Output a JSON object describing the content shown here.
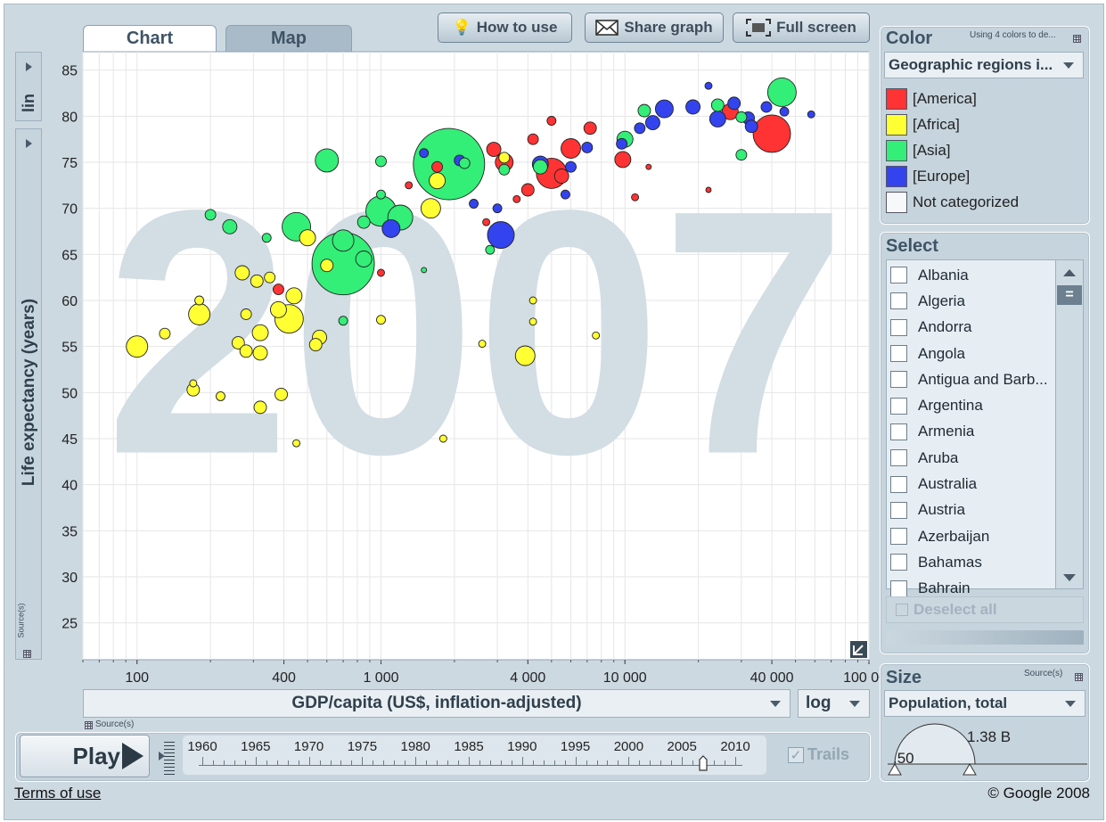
{
  "toolbar": {
    "how_to_use": "How to use",
    "share_graph": "Share graph",
    "full_screen": "Full screen"
  },
  "tabs": {
    "chart": "Chart",
    "map": "Map"
  },
  "y_axis": {
    "scale": "lin",
    "label": "Life expectancy (years)",
    "source": "Source(s)"
  },
  "x_axis": {
    "label": "GDP/capita (US$, inflation-adjusted)",
    "scale": "log",
    "source": "Source(s)"
  },
  "chart_data": {
    "type": "scatter",
    "year_watermark": "2007",
    "xlabel": "GDP/capita (US$, inflation-adjusted)",
    "ylabel": "Life expectancy (years)",
    "x_scale": "log",
    "xlim": [
      60,
      100000
    ],
    "ylim": [
      21,
      87
    ],
    "x_ticks": [
      {
        "v": 100,
        "t": "100"
      },
      {
        "v": 400,
        "t": "400"
      },
      {
        "v": 1000,
        "t": "1 000"
      },
      {
        "v": 4000,
        "t": "4 000"
      },
      {
        "v": 10000,
        "t": "10 000"
      },
      {
        "v": 40000,
        "t": "40 000"
      },
      {
        "v": 100000,
        "t": "100 000"
      }
    ],
    "y_ticks": [
      25,
      30,
      35,
      40,
      45,
      50,
      55,
      60,
      65,
      70,
      75,
      80,
      85
    ],
    "colors": {
      "America": "#ff3333",
      "Africa": "#ffff33",
      "Asia": "#33ee77",
      "Europe": "#3344ee"
    },
    "points": [
      {
        "x": 1900,
        "y": 74.8,
        "r": 40,
        "g": "Asia"
      },
      {
        "x": 700,
        "y": 64.0,
        "r": 35,
        "g": "Asia"
      },
      {
        "x": 40000,
        "y": 78.1,
        "r": 21,
        "g": "America"
      },
      {
        "x": 3100,
        "y": 67.1,
        "r": 15,
        "g": "Europe"
      },
      {
        "x": 5000,
        "y": 73.8,
        "r": 17,
        "g": "America"
      },
      {
        "x": 600,
        "y": 75.2,
        "r": 13,
        "g": "Asia"
      },
      {
        "x": 1000,
        "y": 69.7,
        "r": 17,
        "g": "Asia"
      },
      {
        "x": 450,
        "y": 68.0,
        "r": 16,
        "g": "Asia"
      },
      {
        "x": 1200,
        "y": 69.0,
        "r": 14,
        "g": "Asia"
      },
      {
        "x": 700,
        "y": 66.5,
        "r": 12,
        "g": "Asia"
      },
      {
        "x": 420,
        "y": 58.0,
        "r": 16,
        "g": "Africa"
      },
      {
        "x": 180,
        "y": 58.5,
        "r": 12,
        "g": "Africa"
      },
      {
        "x": 100,
        "y": 55.0,
        "r": 12,
        "g": "Africa"
      },
      {
        "x": 3900,
        "y": 54.0,
        "r": 11,
        "g": "Africa"
      },
      {
        "x": 1600,
        "y": 70.0,
        "r": 11,
        "g": "Africa"
      },
      {
        "x": 500,
        "y": 66.8,
        "r": 9,
        "g": "Africa"
      },
      {
        "x": 380,
        "y": 59.0,
        "r": 9,
        "g": "Africa"
      },
      {
        "x": 320,
        "y": 56.5,
        "r": 9,
        "g": "Africa"
      },
      {
        "x": 440,
        "y": 60.5,
        "r": 9,
        "g": "Africa"
      },
      {
        "x": 560,
        "y": 56.0,
        "r": 8,
        "g": "Africa"
      },
      {
        "x": 270,
        "y": 63.0,
        "r": 8,
        "g": "Africa"
      },
      {
        "x": 320,
        "y": 54.3,
        "r": 8,
        "g": "Africa"
      },
      {
        "x": 390,
        "y": 49.8,
        "r": 7,
        "g": "Africa"
      },
      {
        "x": 320,
        "y": 48.4,
        "r": 7,
        "g": "Africa"
      },
      {
        "x": 260,
        "y": 55.4,
        "r": 7,
        "g": "Africa"
      },
      {
        "x": 280,
        "y": 54.5,
        "r": 7,
        "g": "Africa"
      },
      {
        "x": 170,
        "y": 50.3,
        "r": 7,
        "g": "Africa"
      },
      {
        "x": 540,
        "y": 55.2,
        "r": 7,
        "g": "Africa"
      },
      {
        "x": 600,
        "y": 63.8,
        "r": 7,
        "g": "Africa"
      },
      {
        "x": 280,
        "y": 58.5,
        "r": 6,
        "g": "Africa"
      },
      {
        "x": 310,
        "y": 62.1,
        "r": 7,
        "g": "Africa"
      },
      {
        "x": 350,
        "y": 62.5,
        "r": 6,
        "g": "Africa"
      },
      {
        "x": 220,
        "y": 49.6,
        "r": 5,
        "g": "Africa"
      },
      {
        "x": 170,
        "y": 51.0,
        "r": 4,
        "g": "Africa"
      },
      {
        "x": 130,
        "y": 56.4,
        "r": 6,
        "g": "Africa"
      },
      {
        "x": 180,
        "y": 60.0,
        "r": 5,
        "g": "Africa"
      },
      {
        "x": 450,
        "y": 44.5,
        "r": 4,
        "g": "Africa"
      },
      {
        "x": 1800,
        "y": 45.0,
        "r": 4,
        "g": "Africa"
      },
      {
        "x": 4200,
        "y": 60.0,
        "r": 4,
        "g": "Africa"
      },
      {
        "x": 4200,
        "y": 57.7,
        "r": 4,
        "g": "Africa"
      },
      {
        "x": 7600,
        "y": 56.2,
        "r": 4,
        "g": "Africa"
      },
      {
        "x": 2600,
        "y": 55.3,
        "r": 4,
        "g": "Africa"
      },
      {
        "x": 1000,
        "y": 57.9,
        "r": 5,
        "g": "Africa"
      },
      {
        "x": 1700,
        "y": 73.0,
        "r": 9,
        "g": "Africa"
      },
      {
        "x": 3200,
        "y": 75.5,
        "r": 6,
        "g": "Africa"
      },
      {
        "x": 6000,
        "y": 76.5,
        "r": 11,
        "g": "America"
      },
      {
        "x": 9800,
        "y": 75.3,
        "r": 9,
        "g": "America"
      },
      {
        "x": 3200,
        "y": 75.0,
        "r": 10,
        "g": "America"
      },
      {
        "x": 2900,
        "y": 76.4,
        "r": 8,
        "g": "America"
      },
      {
        "x": 4000,
        "y": 72.0,
        "r": 7,
        "g": "America"
      },
      {
        "x": 5500,
        "y": 73.5,
        "r": 8,
        "g": "America"
      },
      {
        "x": 1700,
        "y": 74.5,
        "r": 6,
        "g": "America"
      },
      {
        "x": 380,
        "y": 61.2,
        "r": 6,
        "g": "America"
      },
      {
        "x": 7200,
        "y": 78.7,
        "r": 7,
        "g": "America"
      },
      {
        "x": 5000,
        "y": 79.5,
        "r": 5,
        "g": "America"
      },
      {
        "x": 4200,
        "y": 77.5,
        "r": 6,
        "g": "America"
      },
      {
        "x": 2700,
        "y": 68.5,
        "r": 4,
        "g": "America"
      },
      {
        "x": 1000,
        "y": 63.0,
        "r": 4,
        "g": "America"
      },
      {
        "x": 1300,
        "y": 72.5,
        "r": 4,
        "g": "America"
      },
      {
        "x": 3600,
        "y": 71.0,
        "r": 4,
        "g": "America"
      },
      {
        "x": 11000,
        "y": 71.2,
        "r": 4,
        "g": "America"
      },
      {
        "x": 12500,
        "y": 74.5,
        "r": 3,
        "g": "America"
      },
      {
        "x": 22000,
        "y": 72.0,
        "r": 3,
        "g": "America"
      },
      {
        "x": 27000,
        "y": 80.5,
        "r": 9,
        "g": "America"
      },
      {
        "x": 19000,
        "y": 81.0,
        "r": 8,
        "g": "Europe"
      },
      {
        "x": 14500,
        "y": 80.8,
        "r": 10,
        "g": "Europe"
      },
      {
        "x": 24000,
        "y": 79.7,
        "r": 9,
        "g": "Europe"
      },
      {
        "x": 32000,
        "y": 79.8,
        "r": 7,
        "g": "Europe"
      },
      {
        "x": 33000,
        "y": 78.9,
        "r": 7,
        "g": "Europe"
      },
      {
        "x": 28000,
        "y": 81.4,
        "r": 7,
        "g": "Europe"
      },
      {
        "x": 38000,
        "y": 81.0,
        "r": 6,
        "g": "Europe"
      },
      {
        "x": 1100,
        "y": 67.8,
        "r": 10,
        "g": "Europe"
      },
      {
        "x": 2100,
        "y": 75.2,
        "r": 6,
        "g": "Europe"
      },
      {
        "x": 13000,
        "y": 79.3,
        "r": 8,
        "g": "Europe"
      },
      {
        "x": 9700,
        "y": 77.0,
        "r": 6,
        "g": "Europe"
      },
      {
        "x": 6000,
        "y": 74.5,
        "r": 6,
        "g": "Europe"
      },
      {
        "x": 5700,
        "y": 71.5,
        "r": 5,
        "g": "Europe"
      },
      {
        "x": 7000,
        "y": 76.6,
        "r": 6,
        "g": "Europe"
      },
      {
        "x": 2400,
        "y": 70.5,
        "r": 5,
        "g": "Europe"
      },
      {
        "x": 1500,
        "y": 76.0,
        "r": 5,
        "g": "Europe"
      },
      {
        "x": 11500,
        "y": 78.7,
        "r": 6,
        "g": "Europe"
      },
      {
        "x": 4500,
        "y": 74.8,
        "r": 9,
        "g": "Europe"
      },
      {
        "x": 22000,
        "y": 83.3,
        "r": 4,
        "g": "Europe"
      },
      {
        "x": 45000,
        "y": 80.5,
        "r": 5,
        "g": "Europe"
      },
      {
        "x": 58000,
        "y": 80.2,
        "r": 4,
        "g": "Europe"
      },
      {
        "x": 3000,
        "y": 70.0,
        "r": 5,
        "g": "Europe"
      },
      {
        "x": 1000,
        "y": 71.5,
        "r": 5,
        "g": "Asia"
      },
      {
        "x": 850,
        "y": 64.5,
        "r": 9,
        "g": "Asia"
      },
      {
        "x": 2800,
        "y": 65.5,
        "r": 5,
        "g": "Asia"
      },
      {
        "x": 2200,
        "y": 74.9,
        "r": 6,
        "g": "Asia"
      },
      {
        "x": 10000,
        "y": 77.5,
        "r": 9,
        "g": "Asia"
      },
      {
        "x": 30000,
        "y": 79.9,
        "r": 6,
        "g": "Asia"
      },
      {
        "x": 24000,
        "y": 81.2,
        "r": 7,
        "g": "Asia"
      },
      {
        "x": 44000,
        "y": 82.6,
        "r": 16,
        "g": "Asia"
      },
      {
        "x": 12000,
        "y": 80.6,
        "r": 7,
        "g": "Asia"
      },
      {
        "x": 30000,
        "y": 75.8,
        "r": 6,
        "g": "Asia"
      },
      {
        "x": 4500,
        "y": 74.5,
        "r": 8,
        "g": "Asia"
      },
      {
        "x": 3200,
        "y": 74.2,
        "r": 6,
        "g": "Asia"
      },
      {
        "x": 240,
        "y": 68.0,
        "r": 8,
        "g": "Asia"
      },
      {
        "x": 340,
        "y": 66.8,
        "r": 5,
        "g": "Asia"
      },
      {
        "x": 200,
        "y": 69.3,
        "r": 6,
        "g": "Asia"
      },
      {
        "x": 700,
        "y": 57.8,
        "r": 5,
        "g": "Asia"
      },
      {
        "x": 850,
        "y": 68.5,
        "r": 7,
        "g": "Asia"
      },
      {
        "x": 1000,
        "y": 75.1,
        "r": 6,
        "g": "Asia"
      },
      {
        "x": 1500,
        "y": 63.3,
        "r": 3,
        "g": "Asia"
      }
    ]
  },
  "color_panel": {
    "heading": "Color",
    "note": "Using 4 colors to de...",
    "selected": "Geographic regions i...",
    "legend": [
      {
        "label": "[America]",
        "color": "#ff3333"
      },
      {
        "label": "[Africa]",
        "color": "#ffff33"
      },
      {
        "label": "[Asia]",
        "color": "#33ee77"
      },
      {
        "label": "[Europe]",
        "color": "#3344ee"
      },
      {
        "label": "Not categorized",
        "color": "#f6f8fa"
      }
    ]
  },
  "select_panel": {
    "heading": "Select",
    "countries": [
      "Albania",
      "Algeria",
      "Andorra",
      "Angola",
      "Antigua and Barb...",
      "Argentina",
      "Armenia",
      "Aruba",
      "Australia",
      "Austria",
      "Azerbaijan",
      "Bahamas",
      "Bahrain"
    ],
    "deselect_all": "Deselect all"
  },
  "size_panel": {
    "heading": "Size",
    "source": "Source(s)",
    "selected": "Population, total",
    "max_value": "1.38 B",
    "min_value": ".50"
  },
  "timeline": {
    "play": "Play",
    "years": [
      "1960",
      "1965",
      "1970",
      "1975",
      "1980",
      "1985",
      "1990",
      "1995",
      "2000",
      "2005",
      "2010"
    ],
    "trails": "Trails",
    "current_year_fraction": 0.94
  },
  "footer": {
    "terms": "Terms of use",
    "copyright": "© Google 2008"
  }
}
